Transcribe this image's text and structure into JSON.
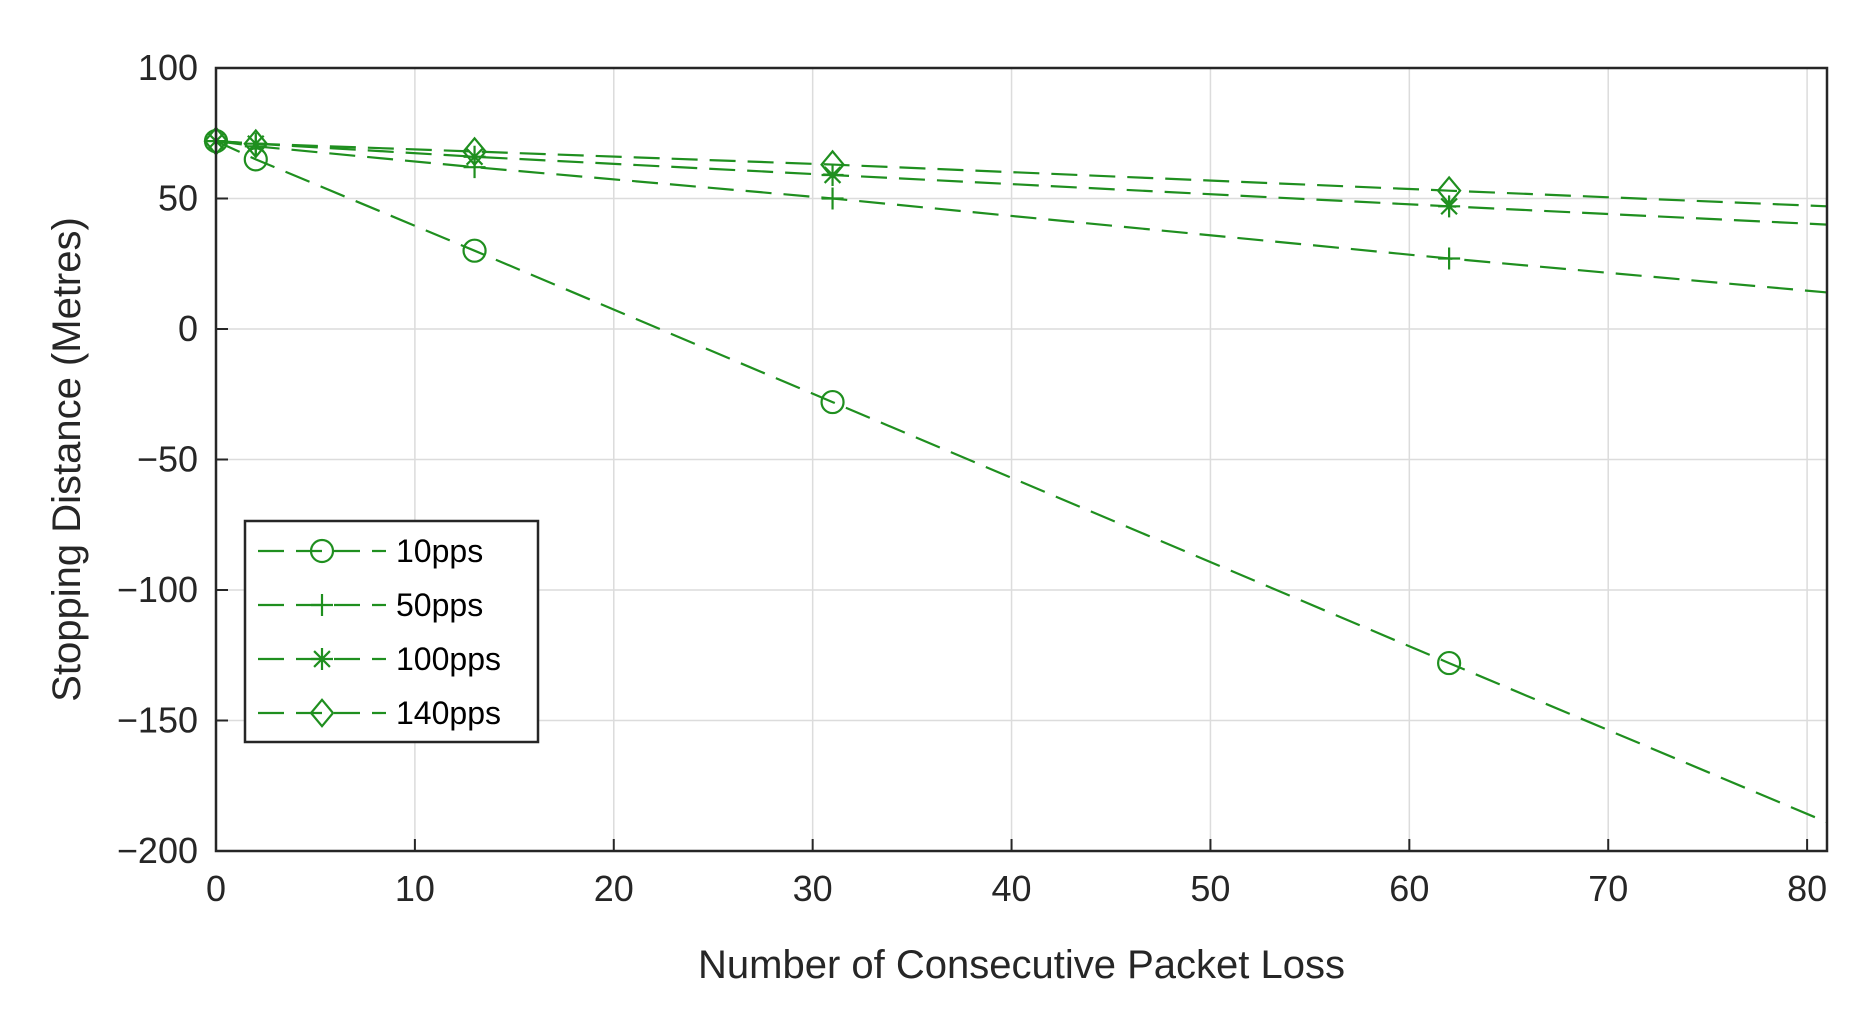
{
  "chart_data": {
    "type": "line",
    "title": "",
    "xlabel": "Number of Consecutive Packet Loss",
    "ylabel": "Stopping Distance (Metres)",
    "xlim": [
      0,
      81
    ],
    "ylim": [
      -200,
      100
    ],
    "xticks": [
      0,
      10,
      20,
      30,
      40,
      50,
      60,
      70,
      80
    ],
    "yticks": [
      100,
      50,
      0,
      -50,
      -100,
      -150,
      -200
    ],
    "xtick_labels": [
      "0",
      "10",
      "20",
      "30",
      "40",
      "50",
      "60",
      "70",
      "80"
    ],
    "ytick_labels": [
      "100",
      "50",
      "0",
      "−50",
      "−100",
      "−150",
      "−200"
    ],
    "grid": true,
    "legend_position": "lower-left",
    "line_style": "dashed",
    "color": "#1f8f1f",
    "series": [
      {
        "name": "10pps",
        "marker": "circle",
        "x": [
          0,
          2,
          13,
          31,
          62,
          81
        ],
        "y": [
          72,
          65,
          30,
          -28,
          -128,
          -189
        ]
      },
      {
        "name": "50pps",
        "marker": "plus",
        "x": [
          0,
          2,
          13,
          31,
          62,
          81
        ],
        "y": [
          72,
          70,
          62,
          50,
          27,
          14
        ]
      },
      {
        "name": "100pps",
        "marker": "asterisk",
        "x": [
          0,
          2,
          13,
          31,
          62,
          81
        ],
        "y": [
          72,
          71,
          66,
          59,
          47,
          40
        ]
      },
      {
        "name": "140pps",
        "marker": "diamond",
        "x": [
          0,
          2,
          13,
          31,
          62,
          81
        ],
        "y": [
          72,
          71,
          68,
          63,
          53,
          47
        ]
      }
    ]
  }
}
